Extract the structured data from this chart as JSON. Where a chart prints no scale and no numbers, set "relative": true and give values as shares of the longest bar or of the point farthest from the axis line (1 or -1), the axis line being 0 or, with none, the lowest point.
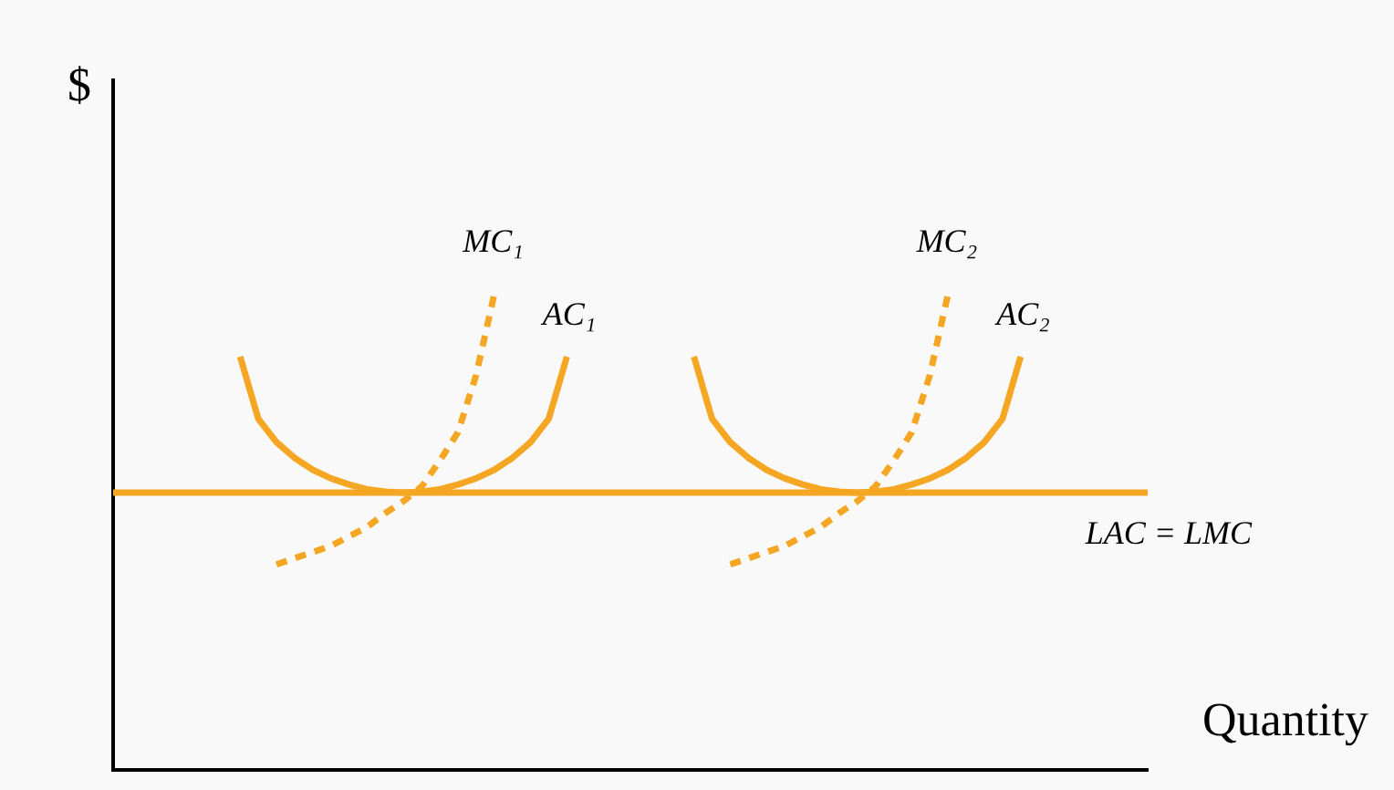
{
  "chart_data": {
    "type": "line",
    "xlabel": "Quantity",
    "ylabel": "$",
    "relative": true,
    "grid": false,
    "legend": false,
    "marker": "none",
    "categories": [
      null,
      null,
      null,
      null,
      null,
      null,
      null,
      null,
      null,
      null,
      null,
      null,
      null,
      null,
      null,
      null,
      null,
      null,
      null,
      null,
      null,
      null,
      null,
      null,
      null,
      null,
      null,
      null,
      null,
      null,
      null,
      null,
      null,
      null,
      null,
      null,
      null,
      null,
      null,
      null,
      null,
      null,
      null,
      null,
      null,
      null,
      null,
      null,
      null,
      null,
      null,
      null,
      null,
      null,
      null,
      null,
      null,
      null
    ],
    "series": [
      {
        "name": "MC₁",
        "color": "#f5a623",
        "line_style": "dashed",
        "values": [
          null,
          null,
          null,
          null,
          null,
          null,
          null,
          null,
          null,
          0.432,
          0.445,
          0.458,
          0.471,
          0.491,
          0.511,
          0.54,
          0.565,
          0.596,
          0.65,
          0.71,
          0.83,
          1,
          null,
          null,
          null,
          null,
          null,
          null,
          null,
          null,
          null,
          null,
          null,
          null,
          null,
          null,
          null,
          null,
          null,
          null,
          null,
          null,
          null,
          null,
          null,
          null,
          null,
          null,
          null,
          null,
          null,
          null,
          null,
          null,
          null,
          null,
          null,
          null
        ]
      },
      {
        "name": "AC₁",
        "color": "#f5a623",
        "line_style": "solid",
        "values": [
          null,
          null,
          null,
          null,
          null,
          null,
          null,
          0.869,
          0.738,
          0.689,
          0.656,
          0.631,
          0.613,
          0.6,
          0.59,
          0.585,
          0.583,
          0.585,
          0.59,
          0.6,
          0.613,
          0.631,
          0.656,
          0.689,
          0.738,
          0.869,
          null,
          null,
          null,
          null,
          null,
          null,
          null,
          null,
          null,
          null,
          null,
          null,
          null,
          null,
          null,
          null,
          null,
          null,
          null,
          null,
          null,
          null,
          null,
          null,
          null,
          null,
          null,
          null,
          null,
          null,
          null,
          null
        ]
      },
      {
        "name": "MC₂",
        "color": "#f5a623",
        "line_style": "dashed",
        "values": [
          null,
          null,
          null,
          null,
          null,
          null,
          null,
          null,
          null,
          null,
          null,
          null,
          null,
          null,
          null,
          null,
          null,
          null,
          null,
          null,
          null,
          null,
          null,
          null,
          null,
          null,
          null,
          null,
          null,
          null,
          null,
          null,
          null,
          null,
          0.432,
          0.445,
          0.458,
          0.471,
          0.491,
          0.511,
          0.54,
          0.565,
          0.596,
          0.65,
          0.71,
          0.83,
          1,
          null,
          null,
          null,
          null,
          null,
          null,
          null,
          null,
          null,
          null,
          null
        ]
      },
      {
        "name": "AC₂",
        "color": "#f5a623",
        "line_style": "solid",
        "values": [
          null,
          null,
          null,
          null,
          null,
          null,
          null,
          null,
          null,
          null,
          null,
          null,
          null,
          null,
          null,
          null,
          null,
          null,
          null,
          null,
          null,
          null,
          null,
          null,
          null,
          null,
          null,
          null,
          null,
          null,
          null,
          null,
          0.869,
          0.738,
          0.689,
          0.656,
          0.631,
          0.613,
          0.6,
          0.59,
          0.585,
          0.583,
          0.585,
          0.59,
          0.6,
          0.613,
          0.631,
          0.656,
          0.689,
          0.738,
          0.869,
          null,
          null,
          null,
          null,
          null,
          null,
          null
        ]
      },
      {
        "name": "LAC = LMC",
        "color": "#f5a623",
        "line_style": "solid",
        "values": [
          0.583,
          0.583,
          0.583,
          0.583,
          0.583,
          0.583,
          0.583,
          0.583,
          0.583,
          0.583,
          0.583,
          0.583,
          0.583,
          0.583,
          0.583,
          0.583,
          0.583,
          0.583,
          0.583,
          0.583,
          0.583,
          0.583,
          0.583,
          0.583,
          0.583,
          0.583,
          0.583,
          0.583,
          0.583,
          0.583,
          0.583,
          0.583,
          0.583,
          0.583,
          0.583,
          0.583,
          0.583,
          0.583,
          0.583,
          0.583,
          0.583,
          0.583,
          0.583,
          0.583,
          0.583,
          0.583,
          0.583,
          0.583,
          0.583,
          0.583,
          0.583,
          0.583,
          0.583,
          0.583,
          0.583,
          0.583,
          0.583,
          0.583
        ]
      }
    ]
  }
}
